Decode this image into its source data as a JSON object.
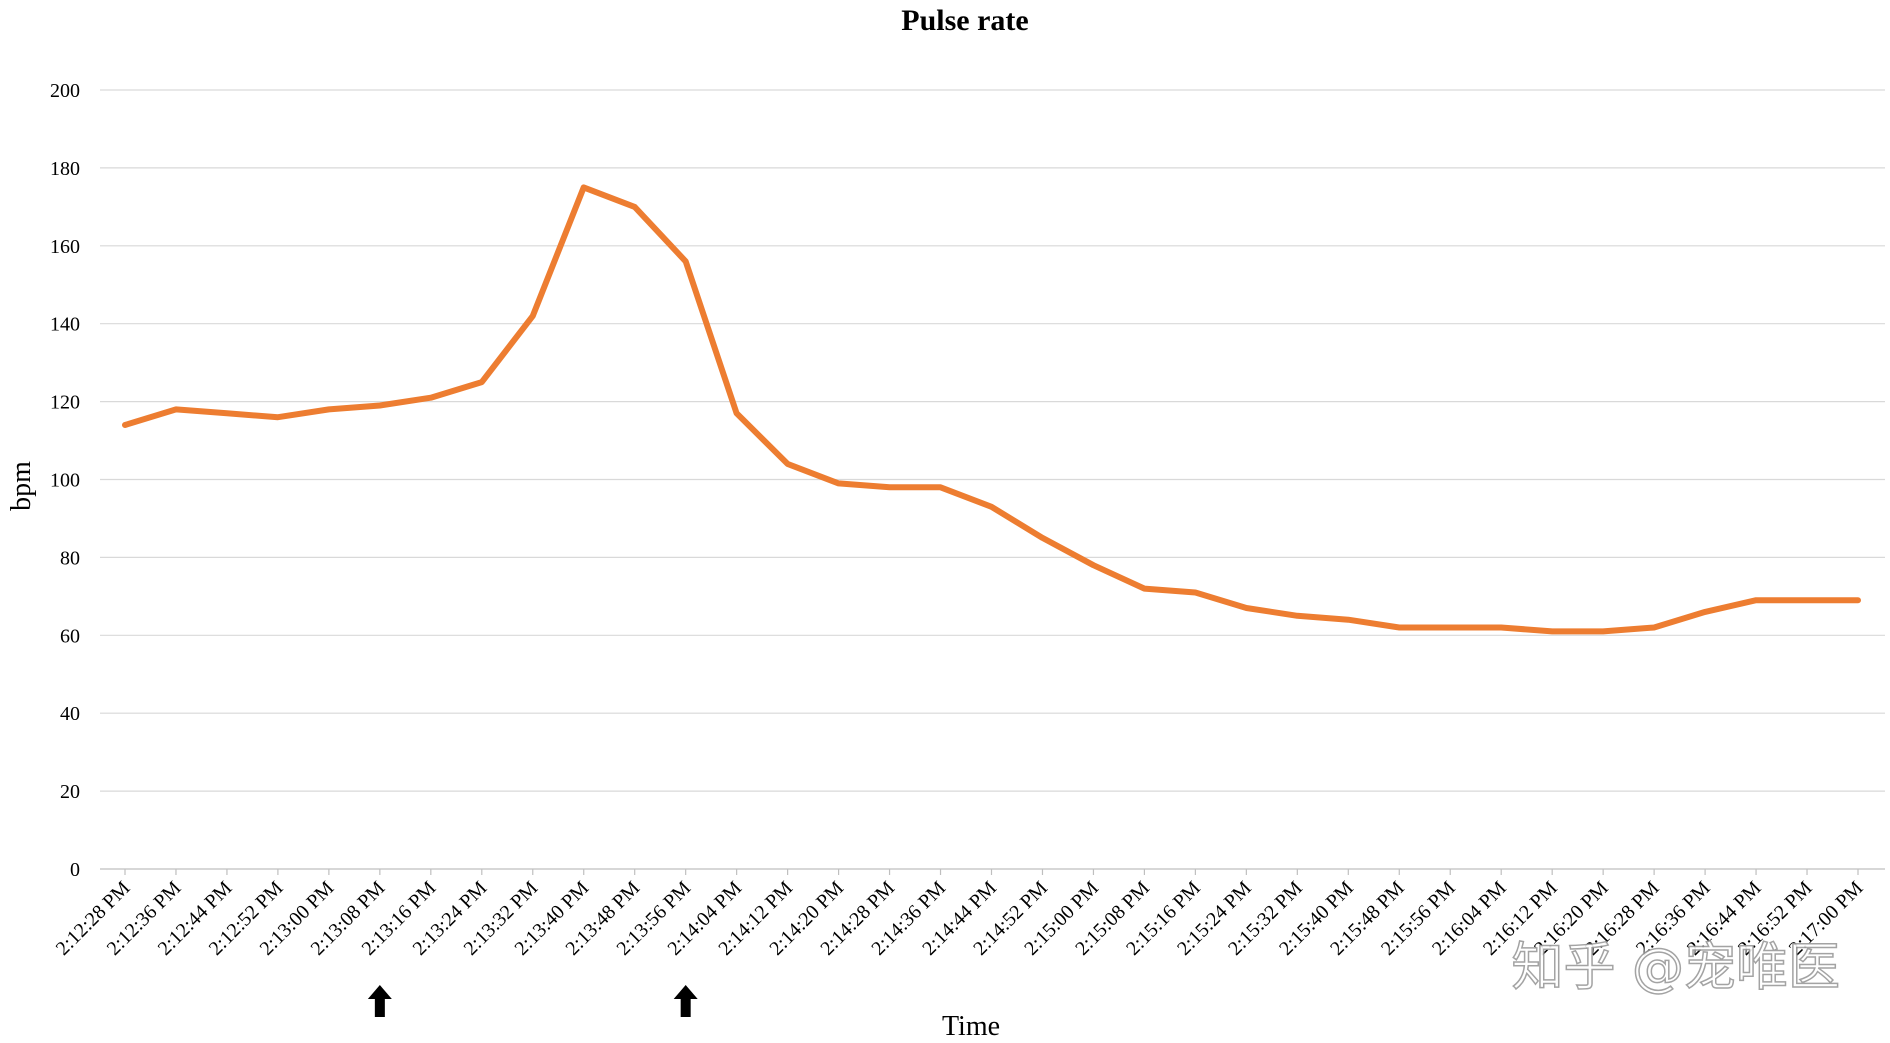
{
  "chart_data": {
    "type": "line",
    "title": "Pulse rate",
    "xlabel": "Time",
    "ylabel": "bpm",
    "ylim": [
      0,
      200
    ],
    "yticks": [
      0,
      20,
      40,
      60,
      80,
      100,
      120,
      140,
      160,
      180,
      200
    ],
    "grid": true,
    "categories": [
      "2:12:28 PM",
      "2:12:36 PM",
      "2:12:44 PM",
      "2:12:52 PM",
      "2:13:00 PM",
      "2:13:08 PM",
      "2:13:16 PM",
      "2:13:24 PM",
      "2:13:32 PM",
      "2:13:40 PM",
      "2:13:48 PM",
      "2:13:56 PM",
      "2:14:04 PM",
      "2:14:12 PM",
      "2:14:20 PM",
      "2:14:28 PM",
      "2:14:36 PM",
      "2:14:44 PM",
      "2:14:52 PM",
      "2:15:00 PM",
      "2:15:08 PM",
      "2:15:16 PM",
      "2:15:24 PM",
      "2:15:32 PM",
      "2:15:40 PM",
      "2:15:48 PM",
      "2:15:56 PM",
      "2:16:04 PM",
      "2:16:12 PM",
      "2:16:20 PM",
      "2:16:28 PM",
      "2:16:36 PM",
      "2:16:44 PM",
      "2:16:52 PM",
      "2:17:00 PM"
    ],
    "series": [
      {
        "color": "#ed7d31",
        "values": [
          114,
          118,
          117,
          116,
          118,
          119,
          121,
          125,
          142,
          175,
          170,
          156,
          117,
          104,
          99,
          98,
          98,
          93,
          85,
          78,
          72,
          71,
          67,
          65,
          64,
          62,
          62,
          62,
          61,
          61,
          62,
          66,
          69,
          69,
          69
        ]
      }
    ],
    "markers": [
      {
        "category": "2:13:08 PM",
        "icon": "up-arrow-icon"
      },
      {
        "category": "2:13:56 PM",
        "icon": "up-arrow-icon"
      }
    ]
  },
  "watermark": {
    "text": "知乎 @宠唯医"
  }
}
